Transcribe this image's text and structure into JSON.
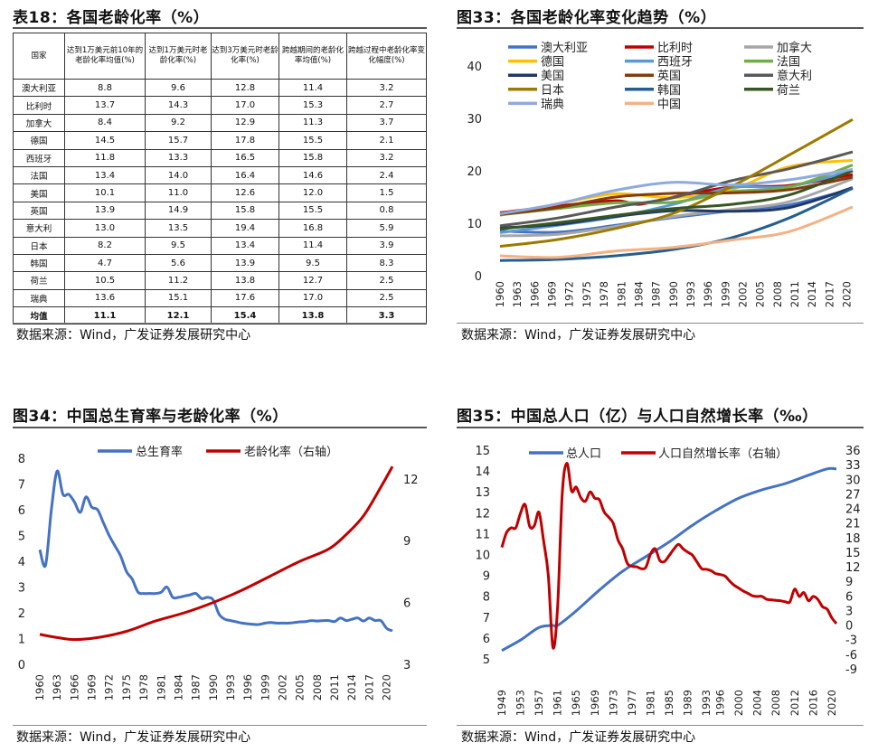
{
  "panels": {
    "table18": {
      "title": "表18：各国老龄化率（%）",
      "source": "数据来源：Wind，广发证券发展研究中心"
    },
    "fig33": {
      "title": "图33：各国老龄化率变化趋势（%）",
      "source": "数据来源：Wind，广发证券发展研究中心"
    },
    "fig34": {
      "title": "图34：中国总生育率与老龄化率（%）",
      "source": "数据来源：Wind，广发证券发展研究中心"
    },
    "fig35": {
      "title": "图35：中国总人口（亿）与人口自然增长率（‰）",
      "source": "数据来源：Wind，广发证券发展研究中心"
    }
  },
  "colors": {
    "blue": "#4472C4",
    "red": "#C00000",
    "rule": "#555555"
  },
  "table": {
    "headers": [
      "国家",
      "达到1万美元前10年的老龄化率均值(%)",
      "达到1万美元时老龄化率(%)",
      "达到3万美元时老龄化率(%)",
      "跨越期间的老龄化率均值(%)",
      "跨越过程中老龄化率变化幅度(%)"
    ],
    "rows": [
      [
        "澳大利亚",
        "8.8",
        "9.6",
        "12.8",
        "11.4",
        "3.2"
      ],
      [
        "比利时",
        "13.7",
        "14.3",
        "17.0",
        "15.3",
        "2.7"
      ],
      [
        "加拿大",
        "8.4",
        "9.2",
        "12.9",
        "11.3",
        "3.7"
      ],
      [
        "德国",
        "14.5",
        "15.7",
        "17.8",
        "15.5",
        "2.1"
      ],
      [
        "西班牙",
        "11.8",
        "13.3",
        "16.5",
        "15.8",
        "3.2"
      ],
      [
        "法国",
        "13.4",
        "14.0",
        "16.4",
        "14.6",
        "2.4"
      ],
      [
        "美国",
        "10.1",
        "11.0",
        "12.6",
        "12.0",
        "1.5"
      ],
      [
        "英国",
        "13.9",
        "14.9",
        "15.8",
        "15.5",
        "0.8"
      ],
      [
        "意大利",
        "13.0",
        "13.5",
        "19.4",
        "16.8",
        "5.9"
      ],
      [
        "日本",
        "8.2",
        "9.5",
        "13.4",
        "11.4",
        "3.9"
      ],
      [
        "韩国",
        "4.7",
        "5.6",
        "13.9",
        "9.5",
        "8.3"
      ],
      [
        "荷兰",
        "10.5",
        "11.2",
        "13.8",
        "12.7",
        "2.5"
      ],
      [
        "瑞典",
        "13.6",
        "15.1",
        "17.6",
        "17.0",
        "2.5"
      ]
    ],
    "average": [
      "均值",
      "11.1",
      "12.1",
      "15.4",
      "13.8",
      "3.3"
    ]
  },
  "chart_data": [
    {
      "id": "fig33",
      "type": "line",
      "title": "各国老龄化率变化趋势（%）",
      "ylim": [
        0,
        40
      ],
      "yticks": [
        0,
        10,
        20,
        30,
        40
      ],
      "xticks": [
        1960,
        1963,
        1966,
        1969,
        1972,
        1975,
        1978,
        1981,
        1984,
        1987,
        1990,
        1993,
        1996,
        1999,
        2002,
        2005,
        2008,
        2011,
        2014,
        2017,
        2020
      ],
      "series": [
        {
          "name": "澳大利亚",
          "color": "#4472C4",
          "x": [
            1960,
            1970,
            1980,
            1990,
            2000,
            2010,
            2021
          ],
          "values": [
            8.5,
            8.3,
            9.6,
            11.1,
            12.4,
            13.5,
            16.6
          ]
        },
        {
          "name": "比利时",
          "color": "#C00000",
          "x": [
            1960,
            1970,
            1980,
            1984,
            1990,
            2000,
            2010,
            2021
          ],
          "values": [
            12.0,
            13.3,
            14.3,
            13.6,
            15.0,
            16.9,
            17.2,
            19.3
          ]
        },
        {
          "name": "加拿大",
          "color": "#A6A6A6",
          "x": [
            1960,
            1970,
            1980,
            1990,
            2000,
            2010,
            2021
          ],
          "values": [
            7.6,
            7.9,
            9.4,
            11.3,
            12.6,
            14.1,
            18.5
          ]
        },
        {
          "name": "德国",
          "color": "#FFC000",
          "x": [
            1960,
            1970,
            1980,
            1990,
            2000,
            2010,
            2021
          ],
          "values": [
            11.5,
            13.7,
            15.6,
            14.9,
            16.4,
            20.8,
            22.0
          ]
        },
        {
          "name": "西班牙",
          "color": "#5B9BD5",
          "x": [
            1960,
            1970,
            1980,
            1990,
            2000,
            2010,
            2021
          ],
          "values": [
            8.2,
            9.6,
            11.2,
            13.6,
            16.8,
            17.0,
            20.1
          ]
        },
        {
          "name": "法国",
          "color": "#70AD47",
          "x": [
            1960,
            1970,
            1980,
            1990,
            2000,
            2010,
            2021
          ],
          "values": [
            11.6,
            12.8,
            13.9,
            14.0,
            16.0,
            16.9,
            21.1
          ]
        },
        {
          "name": "美国",
          "color": "#1F3864",
          "x": [
            1960,
            1970,
            1980,
            1990,
            2000,
            2010,
            2021
          ],
          "values": [
            9.1,
            9.8,
            11.3,
            12.4,
            12.3,
            13.0,
            16.8
          ]
        },
        {
          "name": "英国",
          "color": "#843C0C",
          "x": [
            1960,
            1970,
            1980,
            1990,
            2000,
            2010,
            2021
          ],
          "values": [
            11.7,
            13.0,
            15.0,
            15.7,
            15.8,
            16.4,
            18.8
          ]
        },
        {
          "name": "意大利",
          "color": "#595959",
          "x": [
            1960,
            1970,
            1980,
            1990,
            2000,
            2010,
            2021
          ],
          "values": [
            9.5,
            11.0,
            13.1,
            14.9,
            18.1,
            20.4,
            23.6
          ]
        },
        {
          "name": "日本",
          "color": "#9C7A00",
          "x": [
            1960,
            1970,
            1980,
            1990,
            2000,
            2010,
            2021
          ],
          "values": [
            5.6,
            6.9,
            9.0,
            11.9,
            17.0,
            23.0,
            29.8
          ]
        },
        {
          "name": "韩国",
          "color": "#255E91",
          "x": [
            1960,
            1970,
            1980,
            1990,
            2000,
            2010,
            2021
          ],
          "values": [
            2.9,
            3.1,
            3.8,
            5.0,
            7.2,
            11.0,
            16.7
          ]
        },
        {
          "name": "荷兰",
          "color": "#375623",
          "x": [
            1960,
            1970,
            1980,
            1990,
            2000,
            2010,
            2021
          ],
          "values": [
            8.9,
            10.1,
            11.5,
            12.8,
            13.6,
            15.4,
            20.0
          ]
        },
        {
          "name": "瑞典",
          "color": "#8FAADC",
          "x": [
            1960,
            1970,
            1980,
            1990,
            2000,
            2010,
            2021
          ],
          "values": [
            11.8,
            13.7,
            16.3,
            17.8,
            17.3,
            18.3,
            20.3
          ]
        },
        {
          "name": "中国",
          "color": "#F4B183",
          "x": [
            1960,
            1970,
            1980,
            1990,
            2000,
            2010,
            2021
          ],
          "values": [
            3.8,
            3.5,
            4.7,
            5.4,
            6.8,
            8.4,
            13.1
          ]
        }
      ]
    },
    {
      "id": "fig34",
      "type": "line",
      "title": "中国总生育率与老龄化率（%）",
      "ylim": [
        0,
        8
      ],
      "y2lim": [
        3,
        13
      ],
      "yticks": [
        0,
        1,
        2,
        3,
        4,
        5,
        6,
        7,
        8
      ],
      "y2ticks": [
        3,
        6,
        9,
        12
      ],
      "xticks": [
        1960,
        1963,
        1966,
        1969,
        1972,
        1975,
        1978,
        1981,
        1984,
        1987,
        1990,
        1993,
        1996,
        1999,
        2002,
        2005,
        2008,
        2011,
        2014,
        2017,
        2020
      ],
      "series": [
        {
          "name": "总生育率",
          "axis": "left",
          "color": "#4472C4",
          "x": [
            1960,
            1961,
            1962,
            1963,
            1964,
            1965,
            1966,
            1967,
            1968,
            1969,
            1970,
            1971,
            1972,
            1973,
            1974,
            1975,
            1976,
            1977,
            1978,
            1979,
            1980,
            1981,
            1982,
            1983,
            1984,
            1985,
            1986,
            1987,
            1988,
            1989,
            1990,
            1991,
            1992,
            1993,
            1994,
            1995,
            1996,
            1997,
            1998,
            1999,
            2000,
            2001,
            2002,
            2003,
            2004,
            2005,
            2006,
            2007,
            2008,
            2009,
            2010,
            2011,
            2012,
            2013,
            2014,
            2015,
            2016,
            2017,
            2018,
            2019,
            2020,
            2021
          ],
          "values": [
            4.45,
            3.85,
            6.0,
            7.5,
            6.6,
            6.6,
            6.3,
            5.9,
            6.5,
            6.1,
            6.0,
            5.5,
            5.0,
            4.6,
            4.2,
            3.6,
            3.3,
            2.8,
            2.75,
            2.75,
            2.75,
            2.8,
            3.0,
            2.6,
            2.6,
            2.65,
            2.7,
            2.75,
            2.55,
            2.6,
            2.5,
            1.95,
            1.75,
            1.7,
            1.65,
            1.6,
            1.57,
            1.55,
            1.55,
            1.6,
            1.62,
            1.6,
            1.6,
            1.6,
            1.62,
            1.65,
            1.66,
            1.7,
            1.68,
            1.7,
            1.7,
            1.66,
            1.8,
            1.7,
            1.75,
            1.8,
            1.68,
            1.8,
            1.7,
            1.7,
            1.4,
            1.3
          ]
        },
        {
          "name": "老龄化率（右轴）",
          "axis": "right",
          "color": "#C00000",
          "x": [
            1960,
            1963,
            1966,
            1970,
            1975,
            1980,
            1985,
            1990,
            1995,
            2000,
            2005,
            2010,
            2013,
            2016,
            2019,
            2021
          ],
          "values": [
            4.45,
            4.3,
            4.2,
            4.3,
            4.6,
            5.1,
            5.5,
            6.0,
            6.6,
            7.3,
            8.0,
            8.6,
            9.3,
            10.2,
            11.6,
            12.6
          ]
        }
      ]
    },
    {
      "id": "fig35",
      "type": "line",
      "title": "中国总人口（亿）与人口自然增长率（‰）",
      "ylim": [
        5,
        15
      ],
      "y2lim": [
        -9,
        36
      ],
      "yticks": [
        5,
        6,
        7,
        8,
        9,
        10,
        11,
        12,
        13,
        14,
        15
      ],
      "y2ticks": [
        -9,
        -6,
        -3,
        0,
        3,
        6,
        9,
        12,
        15,
        18,
        21,
        24,
        27,
        30,
        33,
        36
      ],
      "xticks": [
        1949,
        1953,
        1957,
        1961,
        1965,
        1969,
        1973,
        1977,
        1981,
        1985,
        1989,
        1993,
        1996,
        2000,
        2004,
        2008,
        2012,
        2016,
        2020
      ],
      "series": [
        {
          "name": "总人口",
          "axis": "left",
          "color": "#4472C4",
          "x": [
            1949,
            1953,
            1957,
            1960,
            1961,
            1965,
            1970,
            1975,
            1980,
            1985,
            1990,
            1995,
            2000,
            2005,
            2010,
            2015,
            2019,
            2021
          ],
          "values": [
            5.4,
            5.9,
            6.5,
            6.6,
            6.6,
            7.3,
            8.3,
            9.2,
            9.9,
            10.6,
            11.4,
            12.1,
            12.7,
            13.1,
            13.4,
            13.8,
            14.1,
            14.1
          ]
        },
        {
          "name": "人口自然增长率（右轴）",
          "axis": "right",
          "color": "#C00000",
          "x": [
            1949,
            1950,
            1951,
            1952,
            1953,
            1954,
            1955,
            1956,
            1957,
            1958,
            1959,
            1960,
            1961,
            1962,
            1963,
            1964,
            1965,
            1966,
            1967,
            1968,
            1969,
            1970,
            1971,
            1972,
            1973,
            1974,
            1975,
            1976,
            1977,
            1978,
            1979,
            1980,
            1981,
            1982,
            1983,
            1984,
            1985,
            1986,
            1987,
            1988,
            1989,
            1990,
            1991,
            1992,
            1993,
            1994,
            1995,
            1996,
            1997,
            1998,
            1999,
            2000,
            2001,
            2002,
            2003,
            2004,
            2005,
            2006,
            2007,
            2008,
            2009,
            2010,
            2011,
            2012,
            2013,
            2014,
            2015,
            2016,
            2017,
            2018,
            2019,
            2020,
            2021
          ],
          "values": [
            16.0,
            19.0,
            20.0,
            20.0,
            23.0,
            24.8,
            20.3,
            20.5,
            23.2,
            17.2,
            10.2,
            -4.6,
            3.8,
            27.0,
            33.3,
            27.6,
            28.4,
            26.2,
            25.5,
            27.4,
            26.1,
            25.8,
            23.3,
            22.2,
            20.9,
            17.5,
            15.7,
            12.7,
            12.1,
            12.0,
            11.6,
            11.9,
            14.6,
            15.7,
            13.3,
            13.1,
            14.3,
            15.6,
            16.6,
            15.7,
            15.0,
            14.4,
            13.0,
            11.6,
            11.5,
            11.2,
            10.6,
            10.4,
            10.1,
            9.1,
            8.2,
            7.6,
            7.0,
            6.5,
            6.0,
            5.9,
            5.9,
            5.3,
            5.2,
            5.1,
            5.0,
            4.8,
            4.8,
            7.4,
            5.9,
            6.7,
            5.0,
            5.9,
            5.3,
            3.8,
            3.3,
            1.5,
            0.3
          ]
        }
      ]
    }
  ]
}
